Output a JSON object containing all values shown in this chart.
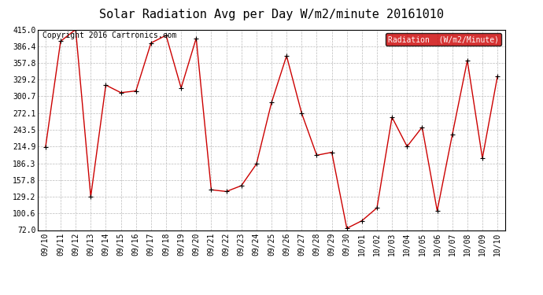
{
  "title": "Solar Radiation Avg per Day W/m2/minute 20161010",
  "copyright_text": "Copyright 2016 Cartronics.com",
  "legend_label": "Radiation  (W/m2/Minute)",
  "dates": [
    "09/10",
    "09/11",
    "09/12",
    "09/13",
    "09/14",
    "09/15",
    "09/16",
    "09/17",
    "09/18",
    "09/19",
    "09/20",
    "09/21",
    "09/22",
    "09/23",
    "09/24",
    "09/25",
    "09/26",
    "09/27",
    "09/28",
    "09/29",
    "09/30",
    "10/01",
    "10/02",
    "10/03",
    "10/04",
    "10/05",
    "10/06",
    "10/07",
    "10/08",
    "10/09",
    "10/10"
  ],
  "values": [
    214.0,
    395.0,
    415.0,
    129.0,
    320.0,
    307.0,
    310.0,
    392.0,
    405.0,
    315.0,
    400.0,
    141.0,
    138.0,
    148.0,
    185.0,
    290.0,
    370.0,
    272.0,
    200.0,
    205.0,
    75.0,
    88.0,
    110.0,
    265.0,
    215.0,
    248.0,
    105.0,
    235.0,
    362.0,
    195.0,
    335.0
  ],
  "yticks": [
    72.0,
    100.6,
    129.2,
    157.8,
    186.3,
    214.9,
    243.5,
    272.1,
    300.7,
    329.2,
    357.8,
    386.4,
    415.0
  ],
  "ymin": 72.0,
  "ymax": 415.0,
  "line_color": "#cc0000",
  "marker_color": "#000000",
  "bg_color": "#ffffff",
  "grid_color": "#bbbbbb",
  "title_fontsize": 11,
  "copyright_fontsize": 7,
  "tick_fontsize": 7,
  "legend_bg": "#cc0000",
  "legend_text_color": "#ffffff",
  "border_color": "#000000"
}
